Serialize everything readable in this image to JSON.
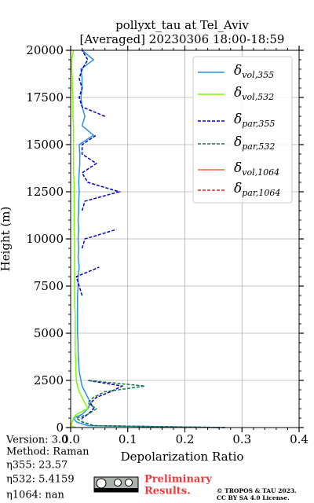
{
  "chart_data": {
    "type": "profile",
    "title": "pollyxt_tau at Tel_Aviv",
    "subtitle": "[Averaged] 20230306 18:00-18:59",
    "xlabel": "Depolarization Ratio",
    "ylabel": "Height (m)",
    "heights": [
      0,
      100,
      300,
      500,
      700,
      1000,
      1300,
      1600,
      1900,
      2200,
      2500,
      3000,
      3500,
      4000,
      4500,
      5000,
      5500,
      6000,
      6500,
      7000,
      7500,
      8000,
      8500,
      9000,
      9500,
      10000,
      10500,
      11000,
      11500,
      12000,
      12500,
      13000,
      13500,
      14000,
      14500,
      15000,
      15500,
      16000,
      16500,
      17000,
      17500,
      18000,
      18500,
      19000,
      19500,
      20000
    ],
    "series": [
      {
        "name": "δvol,355",
        "color": "#2a93de",
        "dashed": false,
        "values": [
          0.26,
          0.03,
          0.01,
          0.005,
          0.02,
          0.03,
          0.035,
          0.03,
          0.025,
          0.02,
          0.018,
          0.015,
          0.014,
          0.013,
          0.013,
          0.012,
          0.012,
          0.012,
          0.012,
          0.012,
          0.013,
          0.013,
          0.015,
          0.013,
          0.014,
          0.013,
          0.014,
          0.013,
          0.014,
          0.014,
          0.015,
          0.014,
          0.015,
          0.016,
          0.016,
          0.015,
          0.04,
          0.02,
          0.025,
          0.02,
          0.018,
          0.02,
          0.02,
          0.018,
          0.04,
          0.02
        ]
      },
      {
        "name": "δvol,532",
        "color": "#7cfc00",
        "dashed": false,
        "values": [
          0.01,
          0.0,
          0.003,
          0.005,
          0.01,
          0.03,
          0.025,
          0.02,
          0.015,
          0.012,
          0.01,
          0.009,
          0.009,
          0.008,
          0.008,
          0.008,
          0.008,
          0.008,
          0.007,
          0.007,
          0.007,
          0.007,
          0.007,
          0.007,
          0.007,
          0.007,
          0.006,
          0.006,
          0.006,
          0.006,
          0.006,
          0.006,
          0.005,
          0.005,
          0.005,
          0.005,
          0.005,
          0.005,
          0.004,
          0.004,
          0.004,
          0.003,
          0.003,
          0.002,
          0.002,
          0.005
        ]
      },
      {
        "name": "δpar,355",
        "color": "#0000cd",
        "dashed": true,
        "values": [
          0.27,
          0.04,
          0.02,
          0.02,
          0.03,
          0.04,
          0.035,
          0.045,
          0.07,
          0.09,
          0.03,
          null,
          null,
          null,
          null,
          null,
          null,
          null,
          null,
          0.02,
          0.015,
          0.01,
          0.05,
          null,
          0.02,
          0.025,
          0.08,
          null,
          0.02,
          0.025,
          0.085,
          0.03,
          0.02,
          0.045,
          0.02,
          0.02,
          0.045,
          null,
          0.06,
          0.02,
          0.015,
          0.02,
          0.015,
          0.02,
          0.03,
          0.02
        ]
      },
      {
        "name": "δpar,532",
        "color": "#127a46",
        "dashed": true,
        "values": [
          0.27,
          0.04,
          0.02,
          0.01,
          0.03,
          0.045,
          0.03,
          0.04,
          0.06,
          0.13,
          0.03,
          null,
          null,
          null,
          null,
          null,
          null,
          null,
          null,
          null,
          null,
          null,
          null,
          null,
          null,
          null,
          null,
          null,
          null,
          null,
          null,
          null,
          null,
          null,
          null,
          null,
          null,
          null,
          null,
          null,
          null,
          null,
          null,
          null,
          null,
          null
        ]
      },
      {
        "name": "δvol,1064",
        "color": "#ff6347",
        "dashed": false,
        "values": [
          null,
          null,
          null,
          null,
          null,
          null,
          null,
          null,
          null,
          null,
          null,
          null,
          null,
          null,
          null,
          null,
          null,
          null,
          null,
          null,
          null,
          null,
          null,
          null,
          null,
          null,
          null,
          null,
          null,
          null,
          null,
          null,
          null,
          null,
          null,
          null,
          null,
          null,
          null,
          null,
          null,
          null,
          null,
          null,
          null,
          null
        ]
      },
      {
        "name": "δpar,1064",
        "color": "#d62728",
        "dashed": true,
        "values": [
          null,
          null,
          null,
          null,
          null,
          null,
          null,
          null,
          null,
          null,
          null,
          null,
          null,
          null,
          null,
          null,
          null,
          null,
          null,
          null,
          null,
          null,
          null,
          null,
          null,
          null,
          null,
          null,
          null,
          null,
          null,
          null,
          null,
          null,
          null,
          null,
          null,
          null,
          null,
          null,
          null,
          null,
          null,
          null,
          null,
          null
        ]
      }
    ],
    "xlim": [
      0,
      0.4
    ],
    "xticks": [
      {
        "value": 0,
        "label": "0.0"
      },
      {
        "value": 0.1,
        "label": "0.1"
      },
      {
        "value": 0.2,
        "label": "0.2"
      },
      {
        "value": 0.3,
        "label": "0.3"
      },
      {
        "value": 0.4,
        "label": "0.4"
      }
    ],
    "ylim": [
      0,
      20000
    ],
    "yticks": [
      0,
      2500,
      5000,
      7500,
      10000,
      12500,
      15000,
      17500,
      20000
    ],
    "grid": true,
    "legend": "upper right",
    "info": [
      "Version: 3.0",
      "Method: Raman",
      "η355:  23.57",
      "η532: 5.4159",
      "η1064:    nan"
    ],
    "watermark": [
      "Preliminary",
      "Results."
    ],
    "copyright": [
      "© TROPOS & TAU 2023.",
      "CC BY SA 4.0 License."
    ]
  }
}
